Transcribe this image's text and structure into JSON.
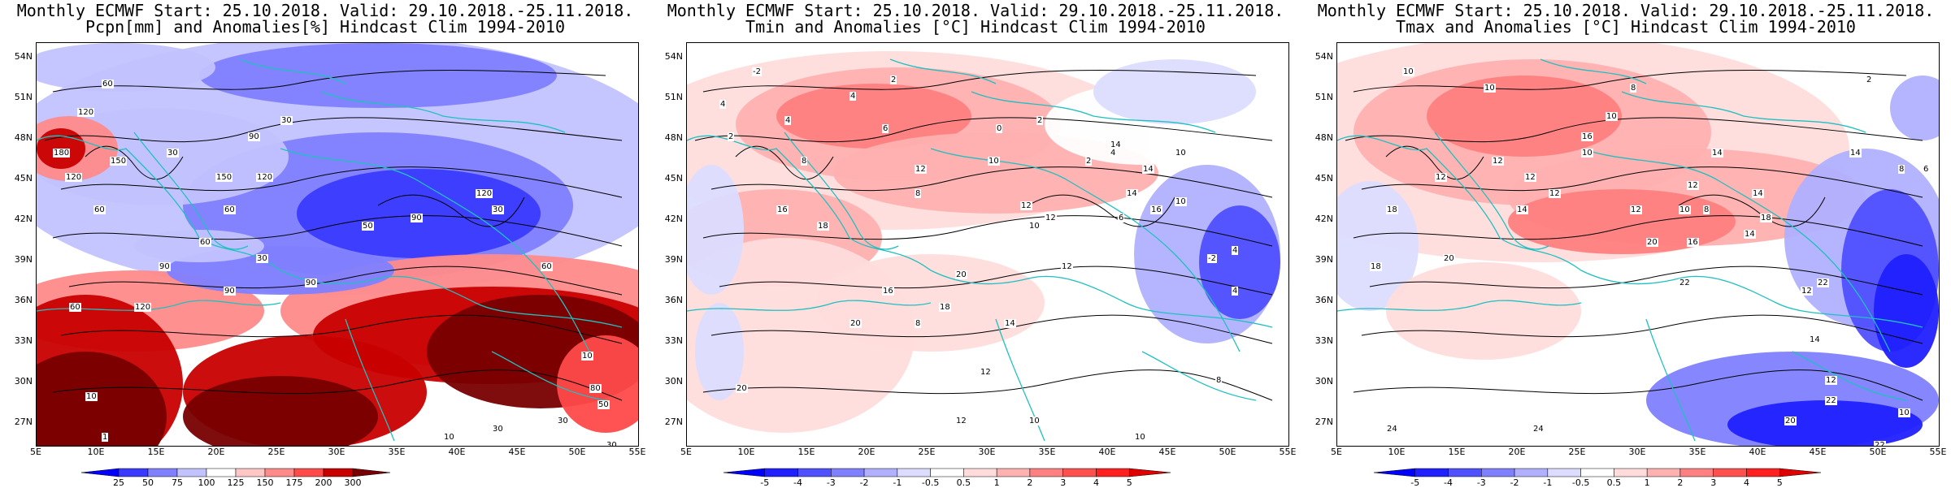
{
  "panels": [
    {
      "id": "pcpn",
      "title_line1": "Monthly ECMWF Start: 25.10.2018. Valid: 29.10.2018.-25.11.2018.",
      "title_line2": "Pcpn[mm] and Anomalies[%] Hindcast Clim 1994-2010",
      "colorbar": {
        "ticks": [
          "25",
          "50",
          "75",
          "100",
          "125",
          "150",
          "175",
          "200",
          "300"
        ],
        "colors": [
          "#0000ff",
          "#3a3aff",
          "#8080ff",
          "#c2c2ff",
          "#ffffff",
          "#ffc6c6",
          "#ff8a8a",
          "#ff4a4a",
          "#c80000",
          "#780000"
        ]
      },
      "contour_labels": [
        "60",
        "30",
        "30",
        "60",
        "120",
        "180",
        "150",
        "120",
        "90",
        "120",
        "150",
        "60",
        "30",
        "90",
        "30",
        "50",
        "90",
        "120",
        "60",
        "120",
        "60",
        "90",
        "90",
        "60",
        "10",
        "10",
        "1",
        "30",
        "30",
        "80",
        "50",
        "10",
        "30"
      ]
    },
    {
      "id": "tmin",
      "title_line1": "Monthly ECMWF Start: 25.10.2018. Valid: 29.10.2018.-25.11.2018.",
      "title_line2": "Tmin and Anomalies [°C] Hindcast Clim 1994-2010",
      "colorbar": {
        "ticks": [
          "-5",
          "-4",
          "-3",
          "-2",
          "-1",
          "-0.5",
          "0.5",
          "1",
          "2",
          "3",
          "4",
          "5"
        ],
        "colors": [
          "#0000ff",
          "#2020ff",
          "#5050ff",
          "#8080ff",
          "#b0b0ff",
          "#dcdcff",
          "#ffffff",
          "#ffdcdc",
          "#ffb0b0",
          "#ff8080",
          "#ff5050",
          "#ff2020",
          "#e00000"
        ]
      },
      "contour_labels": [
        "-2",
        "2",
        "4",
        "4",
        "2",
        "4",
        "6",
        "0",
        "2",
        "4",
        "2",
        "8",
        "10",
        "12",
        "8",
        "10",
        "6",
        "14",
        "16",
        "12",
        "14",
        "12",
        "16",
        "14",
        "18",
        "16",
        "20",
        "10",
        "10",
        "4",
        "-2",
        "4",
        "8",
        "20",
        "14",
        "12",
        "18",
        "10",
        "20",
        "8",
        "10",
        "12",
        "12"
      ]
    },
    {
      "id": "tmax",
      "title_line1": "Monthly ECMWF Start: 25.10.2018. Valid: 29.10.2018.-25.11.2018.",
      "title_line2": "Tmax and Anomalies [°C] Hindcast Clim 1994-2010",
      "colorbar": {
        "ticks": [
          "-5",
          "-4",
          "-3",
          "-2",
          "-1",
          "-0.5",
          "0.5",
          "1",
          "2",
          "3",
          "4",
          "5"
        ],
        "colors": [
          "#0000ff",
          "#2020ff",
          "#5050ff",
          "#8080ff",
          "#b0b0ff",
          "#dcdcff",
          "#ffffff",
          "#ffdcdc",
          "#ffb0b0",
          "#ff8080",
          "#ff5050",
          "#ff2020",
          "#e00000"
        ]
      },
      "contour_labels": [
        "2",
        "10",
        "10",
        "8",
        "10",
        "12",
        "10",
        "8",
        "12",
        "14",
        "16",
        "12",
        "14",
        "12",
        "12",
        "10",
        "14",
        "12",
        "14",
        "18",
        "16",
        "6",
        "8",
        "18",
        "14",
        "20",
        "22",
        "12",
        "18",
        "22",
        "20",
        "24",
        "24",
        "12",
        "14",
        "22",
        "10",
        "20",
        "22"
      ]
    }
  ],
  "lat_labels": [
    "54N",
    "51N",
    "48N",
    "45N",
    "42N",
    "39N",
    "36N",
    "33N",
    "30N",
    "27N"
  ],
  "lon_labels": [
    "5E",
    "10E",
    "15E",
    "20E",
    "25E",
    "30E",
    "35E",
    "40E",
    "45E",
    "50E",
    "55E"
  ],
  "colors": {
    "coastline": "#20c0c0",
    "contour": "#000000"
  }
}
